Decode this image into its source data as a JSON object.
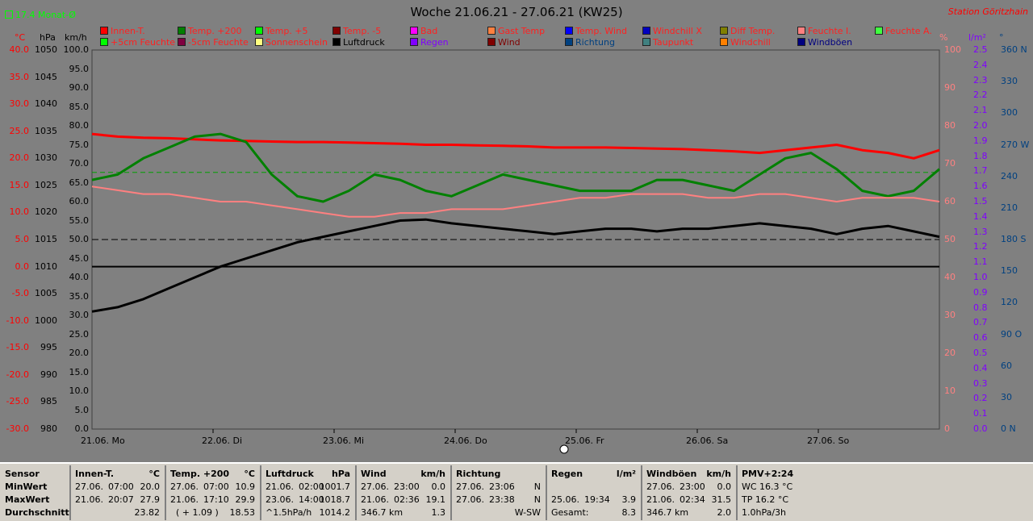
{
  "title": "Woche 21.06.21 - 27.06.21 (KW25)",
  "station": "Station Göritzhain",
  "monthly_avg_label": "17.4 Monat-Ø",
  "units": {
    "celsius": "°C",
    "hpa": "hPa",
    "kmh": "km/h",
    "percent": "%",
    "lm2": "l/m²",
    "deg": "°"
  },
  "legend": [
    {
      "label": "Innen-T.",
      "color": "#ff0000",
      "text_color": "#ff2020"
    },
    {
      "label": "Temp. +200",
      "color": "#008000",
      "text_color": "#ff2020"
    },
    {
      "label": "Temp. +5",
      "color": "#00ff00",
      "text_color": "#ff2020"
    },
    {
      "label": "Temp. -5",
      "color": "#800000",
      "text_color": "#ff2020"
    },
    {
      "label": "Bad",
      "color": "#ff00ff",
      "text_color": "#ff2020"
    },
    {
      "label": "Gast Temp",
      "color": "#ff8040",
      "text_color": "#ff2020"
    },
    {
      "label": "Temp. Wind",
      "color": "#0000ff",
      "text_color": "#ff2020"
    },
    {
      "label": "Windchill X",
      "color": "#0000c0",
      "text_color": "#ff2020"
    },
    {
      "label": "Diff Temp.",
      "color": "#808000",
      "text_color": "#ff2020"
    },
    {
      "label": "Feuchte I.",
      "color": "#ff8080",
      "text_color": "#ff2020"
    },
    {
      "label": "Feuchte A.",
      "color": "#40ff40",
      "text_color": "#ff2020"
    },
    {
      "label": "+5cm Feuchte",
      "color": "#00ff00",
      "text_color": "#ff2020"
    },
    {
      "label": "-5cm Feuchte",
      "color": "#800040",
      "text_color": "#ff2020"
    },
    {
      "label": "Sonnenschein",
      "color": "#ffff80",
      "text_color": "#ff2020"
    },
    {
      "label": "Luftdruck",
      "color": "#000000",
      "text_color": "#000000"
    },
    {
      "label": "Regen",
      "color": "#8000ff",
      "text_color": "#8000ff"
    },
    {
      "label": "Wind",
      "color": "#800000",
      "text_color": "#800000"
    },
    {
      "label": "Richtung",
      "color": "#004080",
      "text_color": "#004080"
    },
    {
      "label": "Taupunkt",
      "color": "#408080",
      "text_color": "#ff2020"
    },
    {
      "label": "Windchill",
      "color": "#ff8000",
      "text_color": "#ff2020"
    },
    {
      "label": "Windböen",
      "color": "#000080",
      "text_color": "#000080"
    }
  ],
  "chart_data": {
    "type": "line",
    "title": "Woche 21.06.21 - 27.06.21 (KW25)",
    "x_labels": [
      "21.06. Mo",
      "22.06. Di",
      "23.06. Mi",
      "24.06. Do",
      "25.06. Fr",
      "26.06. Sa",
      "27.06. So"
    ],
    "axes": {
      "temperature_c": {
        "label": "°C",
        "ticks": [
          "40.0",
          "35.0",
          "30.0",
          "25.0",
          "20.0",
          "15.0",
          "10.0",
          "5.0",
          "0.0",
          "-5.0",
          "-10.0",
          "-15.0",
          "-20.0",
          "-25.0",
          "-30.0"
        ],
        "range": [
          -30,
          40
        ]
      },
      "pressure_hpa": {
        "label": "hPa",
        "ticks": [
          "1050",
          "1045",
          "1040",
          "1035",
          "1030",
          "1025",
          "1020",
          "1015",
          "1010",
          "1005",
          "1000",
          "995",
          "990",
          "985",
          "980"
        ],
        "range": [
          980,
          1050
        ]
      },
      "wind_kmh": {
        "label": "km/h",
        "ticks": [
          "100.0",
          "95.0",
          "90.0",
          "85.0",
          "80.0",
          "75.0",
          "70.0",
          "65.0",
          "60.0",
          "55.0",
          "50.0",
          "45.0",
          "40.0",
          "35.0",
          "30.0",
          "25.0",
          "20.0",
          "15.0",
          "10.0",
          "5.0",
          "0.0"
        ],
        "range": [
          0,
          100
        ]
      },
      "humidity_pct": {
        "label": "%",
        "ticks": [
          "100",
          "90",
          "80",
          "70",
          "60",
          "50",
          "40",
          "30",
          "20",
          "10",
          "0"
        ],
        "range": [
          0,
          100
        ]
      },
      "rain_lm2": {
        "label": "l/m²",
        "ticks": [
          "2.5",
          "2.4",
          "2.3",
          "2.2",
          "2.1",
          "2.0",
          "1.9",
          "1.8",
          "1.7",
          "1.6",
          "1.5",
          "1.4",
          "1.3",
          "1.2",
          "1.1",
          "1.0",
          "0.9",
          "0.8",
          "0.7",
          "0.6",
          "0.5",
          "0.4",
          "0.3",
          "0.2",
          "0.1",
          "0.0"
        ],
        "range": [
          0,
          2.5
        ]
      },
      "direction_deg": {
        "label": "°",
        "ticks": [
          "360 N",
          "330",
          "300",
          "270 W",
          "240",
          "210",
          "180 S",
          "150",
          "120",
          "90 O",
          "60",
          "30",
          "0 N"
        ],
        "range": [
          0,
          360
        ]
      }
    },
    "series": [
      {
        "name": "Innen-T.",
        "color": "#ff0000",
        "width": 3,
        "values": [
          24.5,
          24,
          23.8,
          23.7,
          23.5,
          23.3,
          23.2,
          23.1,
          23.0,
          23.0,
          22.9,
          22.8,
          22.7,
          22.5,
          22.5,
          22.4,
          22.3,
          22.2,
          22.0,
          22.0,
          22.0,
          21.9,
          21.8,
          21.7,
          21.5,
          21.3,
          21.0,
          21.5,
          22.0,
          22.5,
          21.5,
          21.0,
          20.0,
          21.5
        ]
      },
      {
        "name": "Temp. +200",
        "color": "#008000",
        "width": 3,
        "values": [
          16,
          17,
          20,
          22,
          24,
          24.5,
          23,
          17,
          13,
          12,
          14,
          17,
          16,
          14,
          13,
          15,
          17,
          16,
          15,
          14,
          14,
          14,
          16,
          16,
          15,
          14,
          17,
          20,
          21,
          18,
          14,
          13,
          14,
          18
        ]
      },
      {
        "name": "Luftdruck",
        "color": "#000000",
        "width": 3,
        "unit": "hPa",
        "values": [
          1001.7,
          1002.5,
          1004,
          1006,
          1008,
          1010,
          1011.5,
          1013,
          1014.5,
          1015.5,
          1016.5,
          1017.5,
          1018.5,
          1018.7,
          1018,
          1017.5,
          1017,
          1016.5,
          1016,
          1016.5,
          1017,
          1017,
          1016.5,
          1017,
          1017,
          1017.5,
          1018,
          1017.5,
          1017,
          1016,
          1017,
          1017.5,
          1016.5,
          1015.5
        ]
      },
      {
        "name": "Feuchte I.",
        "color": "#ff8080",
        "width": 2,
        "values": [
          64,
          63,
          62,
          62,
          61,
          60,
          60,
          59,
          58,
          57,
          56,
          56,
          57,
          57,
          58,
          58,
          58,
          59,
          60,
          61,
          61,
          62,
          62,
          62,
          61,
          61,
          62,
          62,
          61,
          60,
          61,
          61,
          61,
          60
        ]
      }
    ],
    "stats_table": {
      "headers": [
        [
          "Sensor",
          ""
        ],
        [
          "Innen-T.",
          "°C"
        ],
        [
          "Temp. +200",
          "°C"
        ],
        [
          "Luftdruck",
          "hPa"
        ],
        [
          "Wind",
          "km/h"
        ],
        [
          "Richtung",
          ""
        ],
        [
          "Regen",
          "l/m²"
        ],
        [
          "Windböen",
          "km/h"
        ],
        [
          "PMV+2:24",
          ""
        ]
      ]
    }
  },
  "stats": {
    "row_labels": [
      "Sensor",
      "MinWert",
      "MaxWert",
      "Durchschnitt"
    ],
    "innen": {
      "title": "Innen-T.",
      "unit": "°C",
      "min_date": "27.06.",
      "min_time": "07:00",
      "min": "20.0",
      "max_date": "21.06.",
      "max_time": "20:07",
      "max": "27.9",
      "avg": "23.82"
    },
    "temp200": {
      "title": "Temp. +200",
      "unit": "°C",
      "min_date": "27.06.",
      "min_time": "07:00",
      "min": "10.9",
      "max_date": "21.06.",
      "max_time": "17:10",
      "max": "29.9",
      "avg_extra": "( + 1.09 )",
      "avg": "18.53"
    },
    "druck": {
      "title": "Luftdruck",
      "unit": "hPa",
      "min_date": "21.06.",
      "min_time": "02:00",
      "min": "1001.7",
      "max_date": "23.06.",
      "max_time": "14:00",
      "max": "1018.7",
      "avg_extra": "^1.5hPa/h",
      "avg": "1014.2"
    },
    "wind": {
      "title": "Wind",
      "unit": "km/h",
      "min_date": "27.06.",
      "min_time": "23:00",
      "min": "0.0",
      "max_date": "21.06.",
      "max_time": "02:36",
      "max": "19.1",
      "avg_extra": "346.7 km",
      "avg": "1.3"
    },
    "richtung": {
      "title": "Richtung",
      "min_date": "27.06.",
      "min_time": "23:06",
      "min": "N",
      "max_date": "27.06.",
      "max_time": "23:38",
      "max": "N",
      "avg": "W-SW"
    },
    "regen": {
      "title": "Regen",
      "unit": "l/m²",
      "max_date": "25.06.",
      "max_time": "19:34",
      "max": "3.9",
      "total_label": "Gesamt:",
      "total": "8.3"
    },
    "boeen": {
      "title": "Windböen",
      "unit": "km/h",
      "min_date": "27.06.",
      "min_time": "23:00",
      "min": "0.0",
      "max_date": "21.06.",
      "max_time": "02:34",
      "max": "31.5",
      "avg_extra": "346.7 km",
      "avg": "2.0"
    },
    "pmv": {
      "title": "PMV+2:24",
      "line1": "WC 16.3 °C",
      "line2": "TP 16.2 °C",
      "line3": "1.0hPa/3h"
    }
  }
}
